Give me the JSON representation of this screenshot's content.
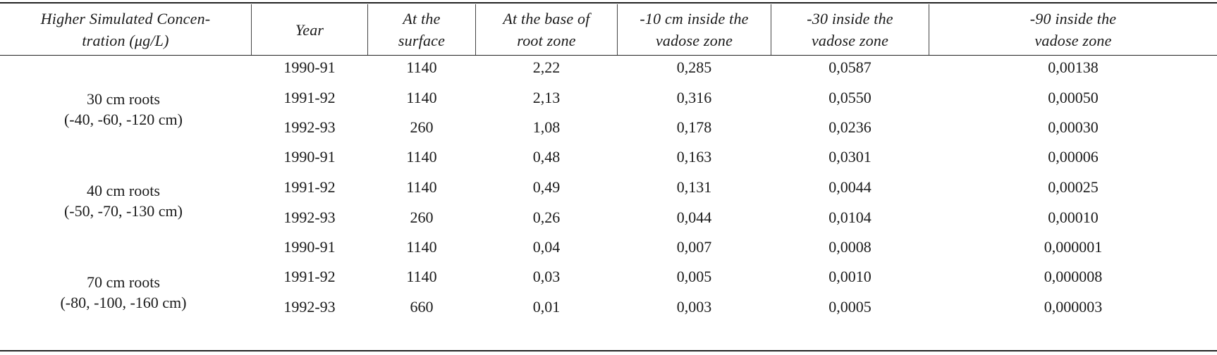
{
  "headers": {
    "concentration": [
      "Higher Simulated Concen-",
      "tration (μg/L)"
    ],
    "year": [
      "Year"
    ],
    "surface": [
      "At the",
      "surface"
    ],
    "root_base": [
      "At the base of",
      "root zone"
    ],
    "vadose10": [
      "-10 cm inside the",
      "vadose zone"
    ],
    "vadose30": [
      "-30 inside the",
      "vadose zone"
    ],
    "vadose90": [
      "-90 inside the",
      "vadose zone"
    ]
  },
  "groups": [
    {
      "label": "30 cm roots",
      "depths": "(-40, -60, -120 cm)"
    },
    {
      "label": "40 cm roots",
      "depths": "(-50, -70, -130 cm)"
    },
    {
      "label": "70 cm roots",
      "depths": "(-80, -100, -160 cm)"
    }
  ],
  "rows": [
    {
      "year": "1990-91",
      "surface": "1140",
      "root_base": "2,22",
      "v10": "0,285",
      "v30": "0,0587",
      "v90": "0,00138"
    },
    {
      "year": "1991-92",
      "surface": "1140",
      "root_base": "2,13",
      "v10": "0,316",
      "v30": "0,0550",
      "v90": "0,00050"
    },
    {
      "year": "1992-93",
      "surface": "260",
      "root_base": "1,08",
      "v10": "0,178",
      "v30": "0,0236",
      "v90": "0,00030"
    },
    {
      "year": "1990-91",
      "surface": "1140",
      "root_base": "0,48",
      "v10": "0,163",
      "v30": "0,0301",
      "v90": "0,00006"
    },
    {
      "year": "1991-92",
      "surface": "1140",
      "root_base": "0,49",
      "v10": "0,131",
      "v30": "0,0044",
      "v90": "0,00025"
    },
    {
      "year": "1992-93",
      "surface": "260",
      "root_base": "0,26",
      "v10": "0,044",
      "v30": "0,0104",
      "v90": "0,00010"
    },
    {
      "year": "1990-91",
      "surface": "1140",
      "root_base": "0,04",
      "v10": "0,007",
      "v30": "0,0008",
      "v90": "0,000001"
    },
    {
      "year": "1991-92",
      "surface": "1140",
      "root_base": "0,03",
      "v10": "0,005",
      "v30": "0,0010",
      "v90": "0,000008"
    },
    {
      "year": "1992-93",
      "surface": "660",
      "root_base": "0,01",
      "v10": "0,003",
      "v30": "0,0005",
      "v90": "0,000003"
    }
  ]
}
